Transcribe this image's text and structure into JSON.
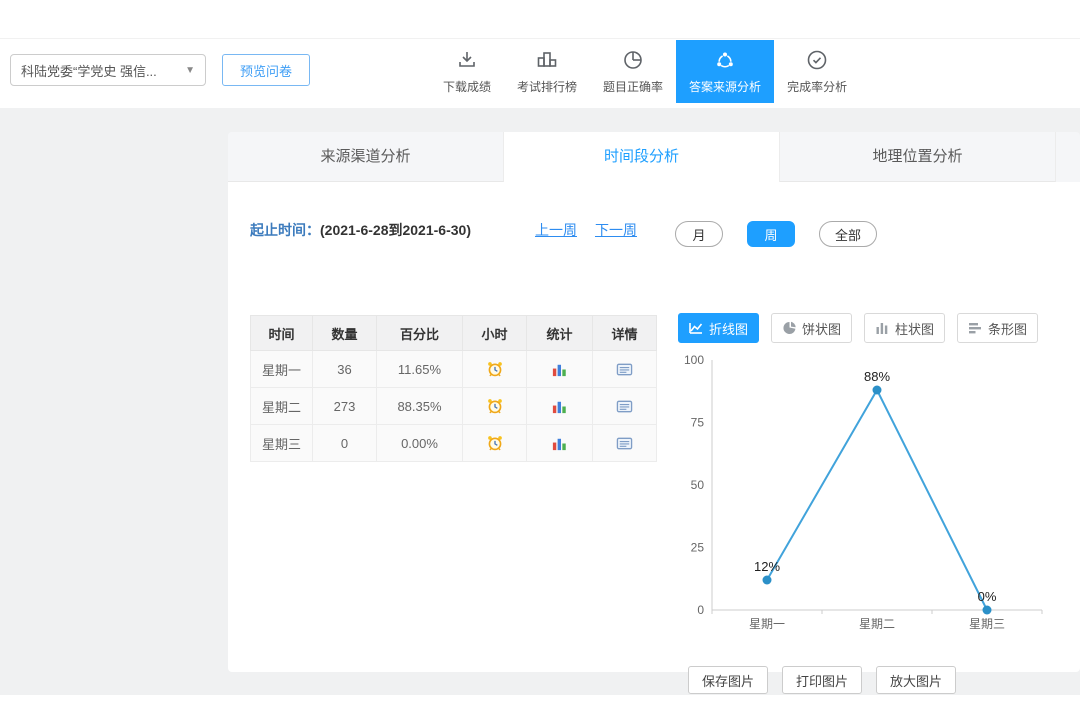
{
  "colors": {
    "accent": "#1e9fff",
    "link": "#2d8cf0",
    "label_blue": "#3c7bbd"
  },
  "header": {
    "survey_select": {
      "value": "科陆党委“学党史 强信...",
      "caret_icon": "▼"
    },
    "preview_button": "预览问卷",
    "nav": [
      {
        "label": "下载成绩",
        "icon": "download-icon",
        "active": false
      },
      {
        "label": "考试排行榜",
        "icon": "ranking-icon",
        "active": false
      },
      {
        "label": "题目正确率",
        "icon": "pie-icon",
        "active": false
      },
      {
        "label": "答案来源分析",
        "icon": "share-network-icon",
        "active": true
      },
      {
        "label": "完成率分析",
        "icon": "check-circle-icon",
        "active": false
      }
    ]
  },
  "tabs": [
    {
      "label": "来源渠道分析",
      "active": false
    },
    {
      "label": "时间段分析",
      "active": true
    },
    {
      "label": "地理位置分析",
      "active": false
    }
  ],
  "date_range": {
    "label": "起止时间：",
    "value": "(2021-6-28到2021-6-30)",
    "prev_link": "上一周",
    "next_link": "下一周"
  },
  "period_buttons": [
    {
      "label": "月",
      "active": false
    },
    {
      "label": "周",
      "active": true
    },
    {
      "label": "全部",
      "active": false
    }
  ],
  "table": {
    "headers": [
      "时间",
      "数量",
      "百分比",
      "小时",
      "统计",
      "详情"
    ],
    "rows": [
      {
        "time": "星期一",
        "count": "36",
        "percent": "11.65%"
      },
      {
        "time": "星期二",
        "count": "273",
        "percent": "88.35%"
      },
      {
        "time": "星期三",
        "count": "0",
        "percent": "0.00%"
      }
    ],
    "row_icons": [
      "alarm-clock-icon",
      "bar-stats-icon",
      "detail-icon"
    ]
  },
  "chart_type_buttons": [
    {
      "label": "折线图",
      "icon": "line-chart-icon",
      "active": true
    },
    {
      "label": "饼状图",
      "icon": "pie-chart-icon",
      "active": false
    },
    {
      "label": "柱状图",
      "icon": "column-chart-icon",
      "active": false
    },
    {
      "label": "条形图",
      "icon": "bar-chart-icon",
      "active": false
    }
  ],
  "chart_data": {
    "type": "line",
    "categories": [
      "星期一",
      "星期二",
      "星期三"
    ],
    "values": [
      12,
      88,
      0
    ],
    "point_labels": [
      "12%",
      "88%",
      "0%"
    ],
    "title": "",
    "xlabel": "",
    "ylabel": "",
    "ylim": [
      0,
      100
    ],
    "yticks": [
      0,
      25,
      50,
      75,
      100
    ],
    "grid": false,
    "legend": "none",
    "line_color": "#41a3db",
    "point_color": "#2b90c8"
  },
  "image_buttons": [
    "保存图片",
    "打印图片",
    "放大图片"
  ]
}
